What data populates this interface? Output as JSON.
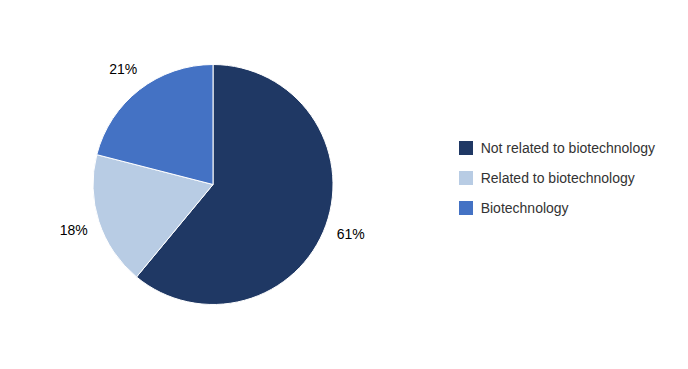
{
  "chart_data": {
    "type": "pie",
    "categories": [
      "Not related to biotechnology",
      "Related to biotechnology",
      "Biotechnology"
    ],
    "values": [
      61,
      18,
      21
    ],
    "value_labels": [
      "61%",
      "18%",
      "21%"
    ],
    "colors": [
      "#1F3864",
      "#B8CCE4",
      "#4472C4"
    ],
    "data_labels": true,
    "legend": "right"
  }
}
